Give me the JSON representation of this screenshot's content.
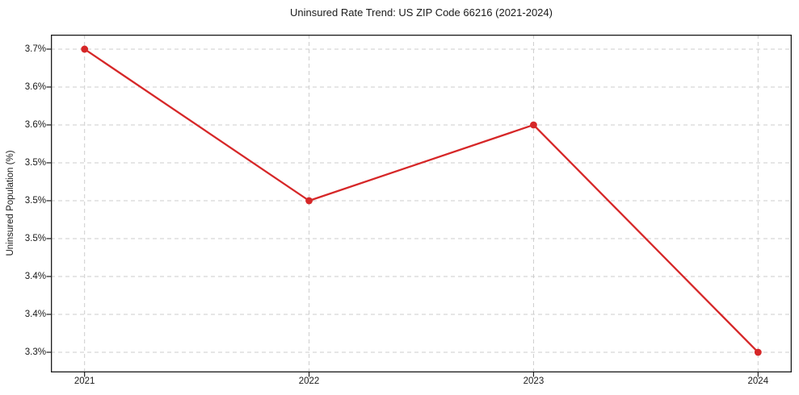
{
  "chart_data": {
    "type": "line",
    "title": "Uninsured Rate Trend: US ZIP Code 66216 (2021-2024)",
    "xlabel": "",
    "ylabel": "Uninsured Population (%)",
    "categories": [
      "2021",
      "2022",
      "2023",
      "2024"
    ],
    "values": [
      3.7,
      3.5,
      3.6,
      3.3
    ],
    "value_unit": "%",
    "y_ticks": [
      {
        "value": 3.7,
        "label": "3.7%"
      },
      {
        "value": 3.65,
        "label": "3.6%"
      },
      {
        "value": 3.6,
        "label": "3.6%"
      },
      {
        "value": 3.55,
        "label": "3.5%"
      },
      {
        "value": 3.5,
        "label": "3.5%"
      },
      {
        "value": 3.45,
        "label": "3.5%"
      },
      {
        "value": 3.4,
        "label": "3.4%"
      },
      {
        "value": 3.35,
        "label": "3.4%"
      },
      {
        "value": 3.3,
        "label": "3.3%"
      }
    ],
    "xlim": [
      2020.85,
      2024.15
    ],
    "ylim": [
      3.2734,
      3.7191
    ],
    "grid": true,
    "legend": false,
    "marker": "circle",
    "line_color": "#d62728",
    "grid_color": "#cdcdcd",
    "text_color": "#1a1a1a"
  }
}
